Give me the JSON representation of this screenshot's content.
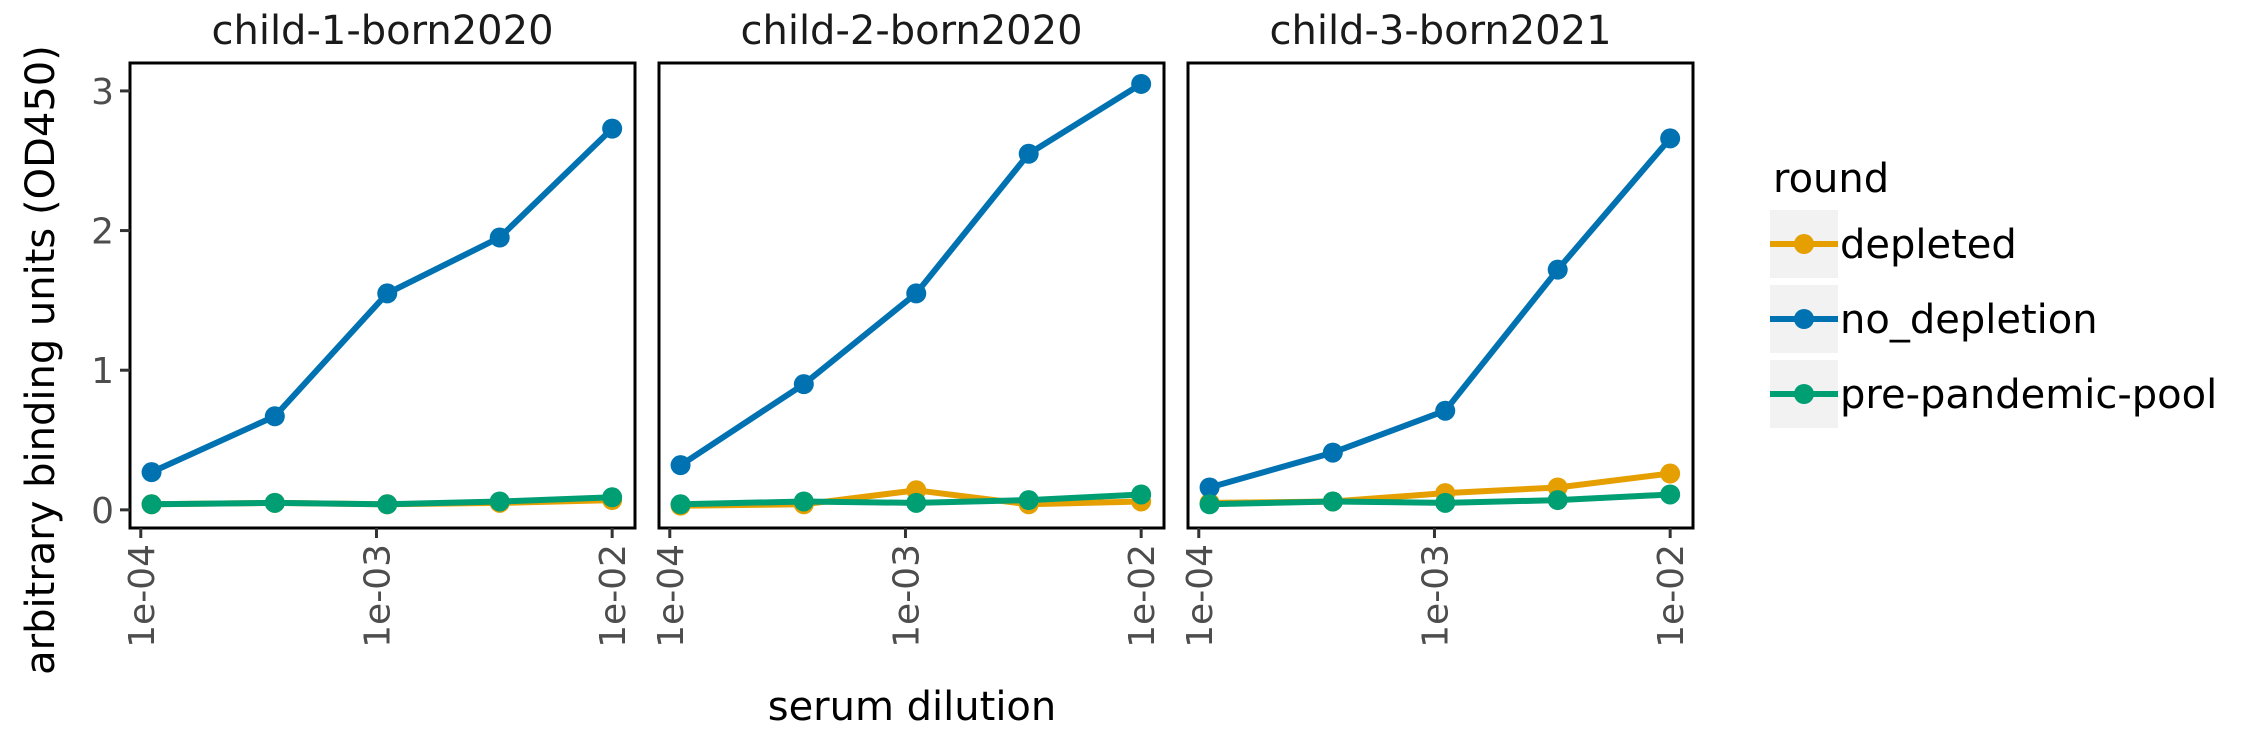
{
  "chart_data": {
    "type": "line",
    "facet_titles": [
      "child-1-born2020",
      "child-2-born2020",
      "child-3-born2021"
    ],
    "xlabel": "serum dilution",
    "ylabel": "arbitrary binding units (OD450)",
    "x_scale": "log10",
    "x_ticks": [
      0.0001,
      0.001,
      0.01
    ],
    "x_tick_labels": [
      "1e-04",
      "1e-03",
      "1e-02"
    ],
    "y_ticks": [
      0,
      1,
      2,
      3
    ],
    "y_tick_labels": [
      "0",
      "1",
      "2",
      "3"
    ],
    "xlim": [
      9e-05,
      0.0125
    ],
    "ylim": [
      -0.13,
      3.2
    ],
    "x": [
      0.0001111,
      0.0003704,
      0.001111,
      0.003333,
      0.01
    ],
    "legend": {
      "title": "round",
      "position": "right",
      "entries": [
        "depleted",
        "no_depletion",
        "pre-pandemic-pool"
      ]
    },
    "colors": {
      "depleted": "#E69F00",
      "no_depletion": "#0072B2",
      "pre-pandemic-pool": "#009E73"
    },
    "panels": [
      {
        "title": "child-1-born2020",
        "series": [
          {
            "name": "depleted",
            "values": [
              0.04,
              0.05,
              0.04,
              0.05,
              0.07
            ]
          },
          {
            "name": "no_depletion",
            "values": [
              0.27,
              0.67,
              1.55,
              1.95,
              2.73
            ]
          },
          {
            "name": "pre-pandemic-pool",
            "values": [
              0.04,
              0.05,
              0.04,
              0.06,
              0.09
            ]
          }
        ]
      },
      {
        "title": "child-2-born2020",
        "series": [
          {
            "name": "depleted",
            "values": [
              0.03,
              0.04,
              0.14,
              0.04,
              0.06
            ]
          },
          {
            "name": "no_depletion",
            "values": [
              0.32,
              0.9,
              1.55,
              2.55,
              3.05
            ]
          },
          {
            "name": "pre-pandemic-pool",
            "values": [
              0.04,
              0.06,
              0.05,
              0.07,
              0.11
            ]
          }
        ]
      },
      {
        "title": "child-3-born2021",
        "series": [
          {
            "name": "depleted",
            "values": [
              0.05,
              0.06,
              0.12,
              0.16,
              0.26
            ]
          },
          {
            "name": "no_depletion",
            "values": [
              0.16,
              0.41,
              0.71,
              1.72,
              2.66
            ]
          },
          {
            "name": "pre-pandemic-pool",
            "values": [
              0.04,
              0.06,
              0.05,
              0.07,
              0.11
            ]
          }
        ]
      }
    ]
  }
}
